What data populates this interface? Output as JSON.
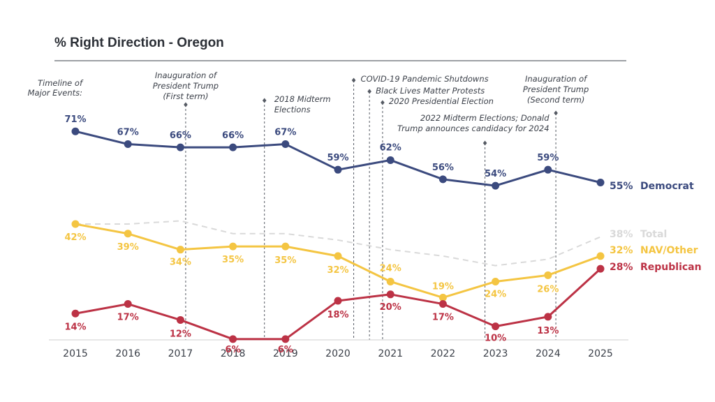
{
  "chart_data": {
    "type": "line",
    "title": "% Right Direction - Oregon",
    "x": [
      "2015",
      "2016",
      "2017",
      "2018",
      "2019",
      "2020",
      "2021",
      "2022",
      "2023",
      "2024",
      "2025"
    ],
    "ylim": [
      0,
      80
    ],
    "grid": false,
    "legend": "right-end labels",
    "series": [
      {
        "name": "Democrat",
        "color": "#3b4a7e",
        "style": "solid",
        "labeled": true,
        "values": [
          71,
          67,
          66,
          66,
          67,
          59,
          62,
          56,
          54,
          59,
          55
        ]
      },
      {
        "name": "Total",
        "color": "#d9d9d9",
        "style": "dashed",
        "labeled": false,
        "values": [
          42,
          42,
          43,
          39,
          39,
          37,
          34,
          32,
          29,
          31,
          38
        ],
        "end_label": "38%"
      },
      {
        "name": "NAV/Other",
        "color": "#f4c542",
        "style": "solid",
        "labeled": true,
        "values": [
          42,
          39,
          34,
          35,
          35,
          32,
          24,
          19,
          24,
          26,
          32
        ]
      },
      {
        "name": "Republican",
        "color": "#bc3245",
        "style": "solid",
        "labeled": true,
        "values": [
          14,
          17,
          12,
          6,
          6,
          18,
          20,
          17,
          10,
          13,
          28
        ]
      }
    ],
    "events_heading": "Timeline of\nMajor Events:",
    "events": [
      {
        "x": 2017.1,
        "text": "Inauguration of\nPresident Trump\n(First term)",
        "align": "middle"
      },
      {
        "x": 2018.6,
        "text": "2018 Midterm\nElections",
        "align": "start"
      },
      {
        "x": 2020.3,
        "text": "COVID-19 Pandemic Shutdowns",
        "align": "start"
      },
      {
        "x": 2020.6,
        "text": "Black Lives Matter Protests",
        "align": "start"
      },
      {
        "x": 2020.85,
        "text": "2020 Presidential Election",
        "align": "start"
      },
      {
        "x": 2022.8,
        "text": "2022 Midterm Elections; Donald\nTrump announces candidacy for 2024",
        "align": "end"
      },
      {
        "x": 2024.15,
        "text": "Inauguration of\nPresident Trump\n(Second term)",
        "align": "middle"
      }
    ]
  }
}
